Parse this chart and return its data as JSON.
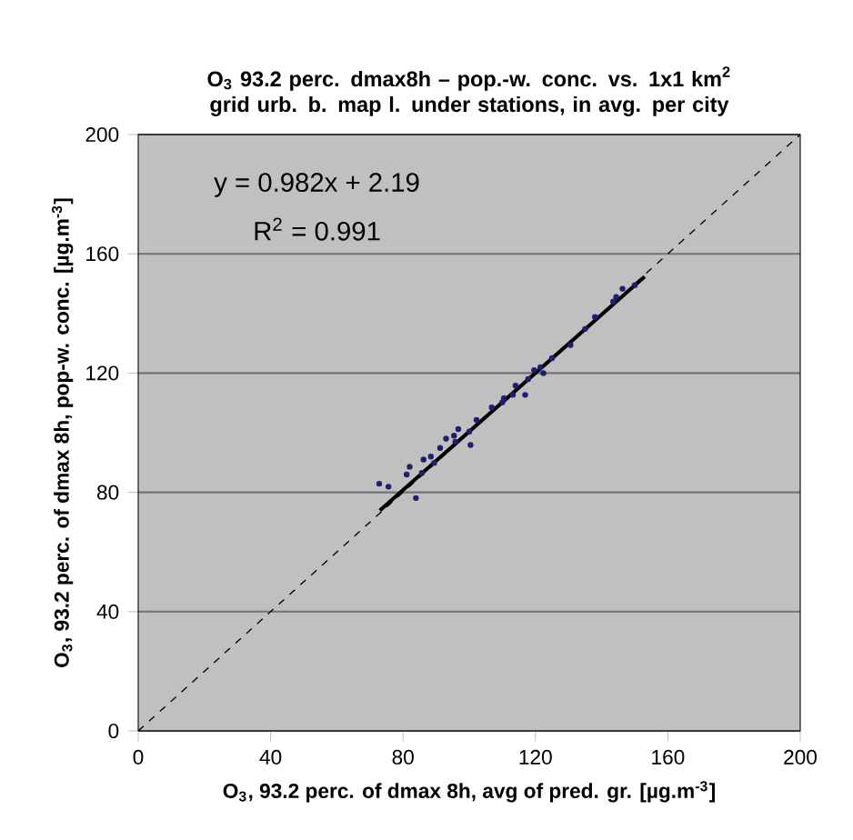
{
  "chart_data": {
    "type": "scatter",
    "title": "O$_{3}$ 93.2 perc. dmax8h – pop.-w. conc. vs. 1x1 km$^{2}$ grid urb. b. map l. under stations, in avg. per city",
    "xlabel": "O$_{3}$, 93.2 perc. of dmax 8h, avg of pred. gr. [µg.m$^{-3}$]",
    "ylabel": "O$_{3}$, 93.2 perc. of dmax 8h, pop-w. conc. [µg.m$^{-3}$]",
    "annotations": [
      "y = 0.982x + 2.19",
      "R$^{2}$ = 0.991"
    ],
    "xlim": [
      0,
      200
    ],
    "ylim": [
      0,
      200
    ],
    "xticks": [
      0,
      40,
      80,
      120,
      160,
      200
    ],
    "yticks": [
      0,
      40,
      80,
      120,
      160,
      200
    ],
    "grid": "y",
    "series": [
      {
        "type": "line",
        "marker": "none",
        "color": "#000000",
        "line_style": "dashed",
        "x": [
          0,
          200
        ],
        "values": [
          0,
          200
        ]
      },
      {
        "type": "line",
        "marker": "none",
        "color": "#000000",
        "line_style": "solid",
        "x": [
          73,
          153
        ],
        "values": [
          73.9,
          152.4
        ]
      },
      {
        "marker": "circle",
        "color": "#1f1f6e",
        "x": [
          72.8,
          75.6,
          83.9,
          82,
          81.1,
          86.2,
          88.4,
          93,
          95.4,
          95.8,
          100.4,
          102.2,
          106.8,
          110.5,
          114,
          116.9,
          117.8,
          119.6,
          121.5,
          122.4,
          130.6,
          138,
          143.5,
          146.3,
          144.4,
          91.2,
          96.7,
          113.2,
          89.4,
          85.7,
          100,
          110,
          125,
          135,
          150
        ],
        "values": [
          82.9,
          81.9,
          78.1,
          88.6,
          86,
          91,
          92,
          98,
          99,
          97,
          95.9,
          104.3,
          108.5,
          111.6,
          115.8,
          112.7,
          118,
          121,
          122,
          120,
          129.4,
          138.8,
          144,
          148.3,
          145.5,
          94.9,
          101.2,
          112.7,
          89.9,
          86.5,
          100.4,
          110.2,
          125,
          134.8,
          149.5
        ]
      }
    ]
  }
}
